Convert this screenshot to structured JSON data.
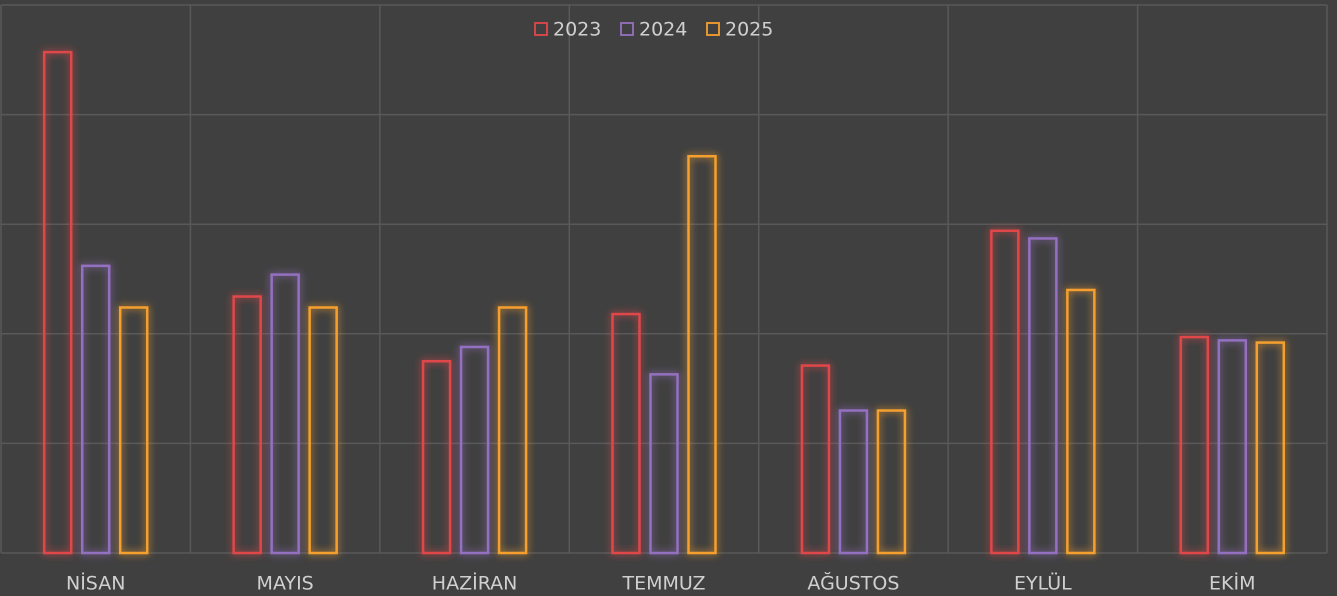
{
  "chart_data": {
    "type": "bar",
    "categories": [
      "NİSAN",
      "MAYIS",
      "HAZİRAN",
      "TEMMUZ",
      "AĞUSTOS",
      "EYLÜL",
      "EKİM"
    ],
    "series": [
      {
        "name": "2023",
        "color": "#e0474a",
        "values": [
          4.57,
          2.34,
          1.75,
          2.18,
          1.71,
          2.94,
          1.97
        ]
      },
      {
        "name": "2024",
        "color": "#9470c0",
        "values": [
          2.62,
          2.54,
          1.88,
          1.63,
          1.3,
          2.87,
          1.94
        ]
      },
      {
        "name": "2025",
        "color": "#f5a02e",
        "values": [
          2.24,
          2.24,
          2.24,
          3.62,
          1.3,
          2.4,
          1.92
        ]
      }
    ],
    "ylim": [
      0,
      5
    ],
    "yticks": [
      0,
      1,
      2,
      3,
      4,
      5
    ],
    "grid": true,
    "legend": "top"
  }
}
